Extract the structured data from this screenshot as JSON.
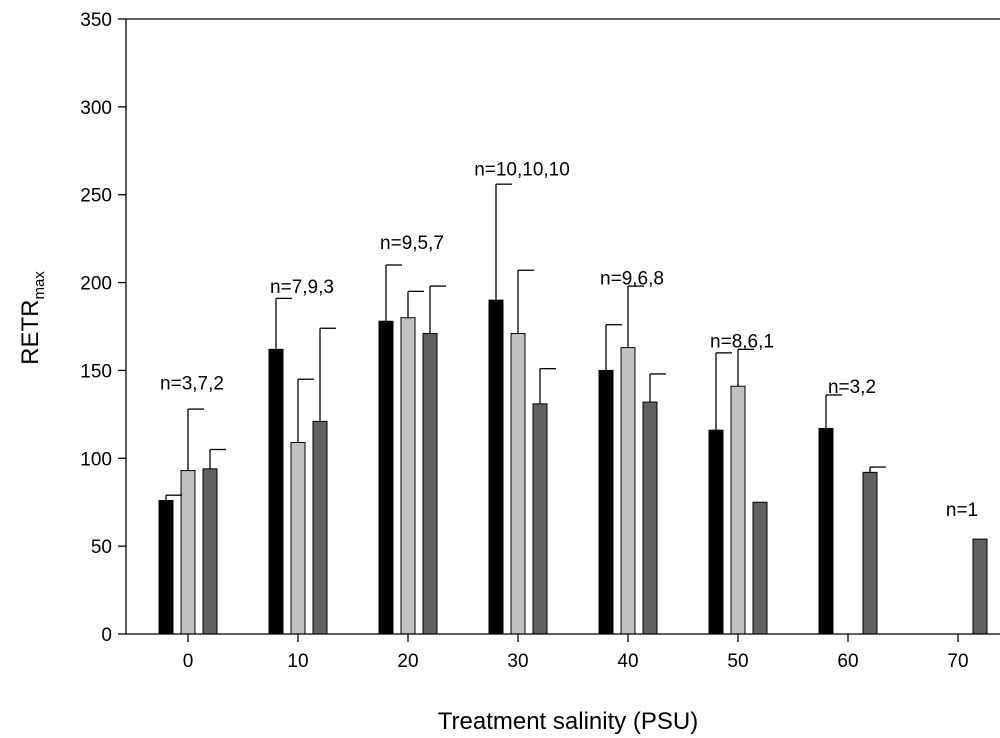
{
  "chart_data": {
    "type": "bar",
    "categories": [
      "0",
      "10",
      "20",
      "30",
      "40",
      "50",
      "60",
      "70"
    ],
    "xlabel": "Treatment salinity (PSU)",
    "ylabel_main": "RETR",
    "ylabel_sub": "max",
    "ylim": [
      0,
      350
    ],
    "yticks": [
      "0",
      "50",
      "100",
      "150",
      "200",
      "250",
      "300",
      "350"
    ],
    "grid": false,
    "legend": "none",
    "series": [
      {
        "color": "#000000",
        "values": [
          76,
          162,
          178,
          190,
          150,
          116,
          117,
          null
        ],
        "errors": [
          3,
          29,
          32,
          66,
          26,
          44,
          19,
          null
        ]
      },
      {
        "color": "#c0c0c0",
        "values": [
          93,
          109,
          180,
          171,
          163,
          141,
          null,
          null
        ],
        "errors": [
          35,
          36,
          15,
          36,
          35,
          21,
          null,
          null
        ]
      },
      {
        "color": "#606060",
        "values": [
          94,
          121,
          171,
          131,
          132,
          75,
          92,
          54
        ],
        "errors": [
          11,
          53,
          27,
          20,
          16,
          null,
          3,
          null
        ]
      }
    ],
    "annotations": [
      {
        "text": "n=3,7,2",
        "category": 0,
        "y": 143
      },
      {
        "text": "n=7,9,3",
        "category": 1,
        "y": 198
      },
      {
        "text": "n=9,5,7",
        "category": 2,
        "y": 223
      },
      {
        "text": "n=10,10,10",
        "category": 3,
        "y": 265
      },
      {
        "text": "n=9,6,8",
        "category": 4,
        "y": 203
      },
      {
        "text": "n=8,6,1",
        "category": 5,
        "y": 167
      },
      {
        "text": "n=3,2",
        "category": 6,
        "y": 141
      },
      {
        "text": "n=1",
        "category": 7,
        "y": 71
      }
    ]
  }
}
